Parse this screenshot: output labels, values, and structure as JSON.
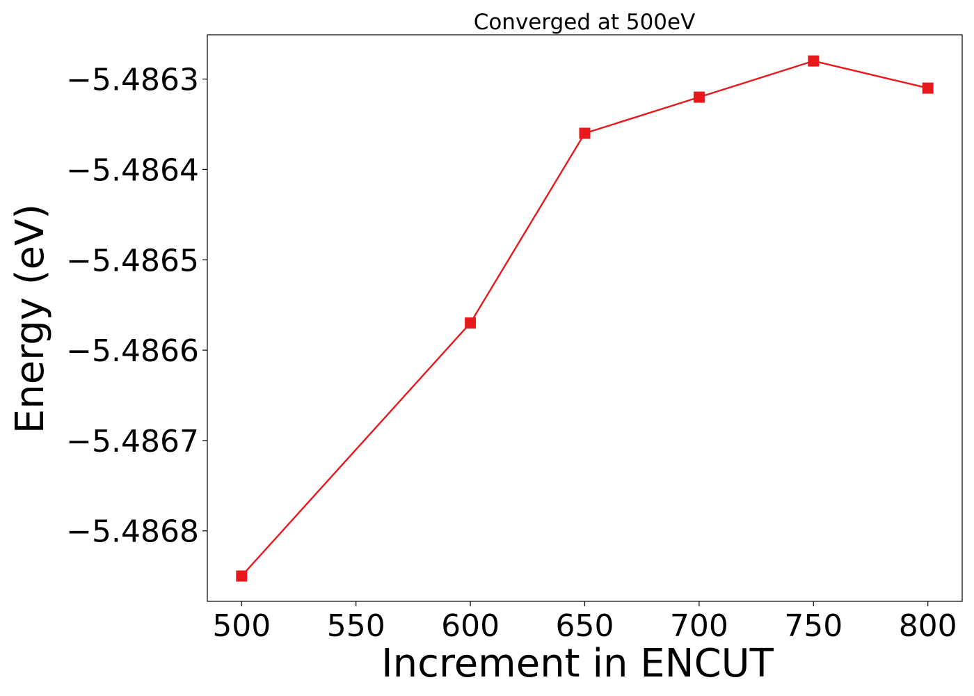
{
  "chart_data": {
    "type": "line",
    "title": "Converged at 500eV",
    "xlabel": "Increment in ENCUT",
    "ylabel": "Energy (eV)",
    "x": [
      500,
      600,
      650,
      700,
      750,
      800
    ],
    "series": [
      {
        "values": [
          -5.48685,
          -5.48657,
          -5.48636,
          -5.48632,
          -5.48628,
          -5.48631
        ],
        "color": "#e8191c",
        "marker": "square"
      }
    ],
    "xlim": [
      485,
      815
    ],
    "ylim": [
      -5.486878,
      -5.486251
    ],
    "x_ticks": [
      500,
      550,
      600,
      650,
      700,
      750,
      800
    ],
    "x_tick_labels": [
      "500",
      "550",
      "600",
      "650",
      "700",
      "750",
      "800"
    ],
    "y_ticks": [
      -5.4863,
      -5.4864,
      -5.4865,
      -5.4866,
      -5.4867,
      -5.4868
    ],
    "y_tick_labels": [
      "−5.4863",
      "−5.4864",
      "−5.4865",
      "−5.4866",
      "−5.4867",
      "−5.4868"
    ],
    "grid": false,
    "legend": "none"
  }
}
